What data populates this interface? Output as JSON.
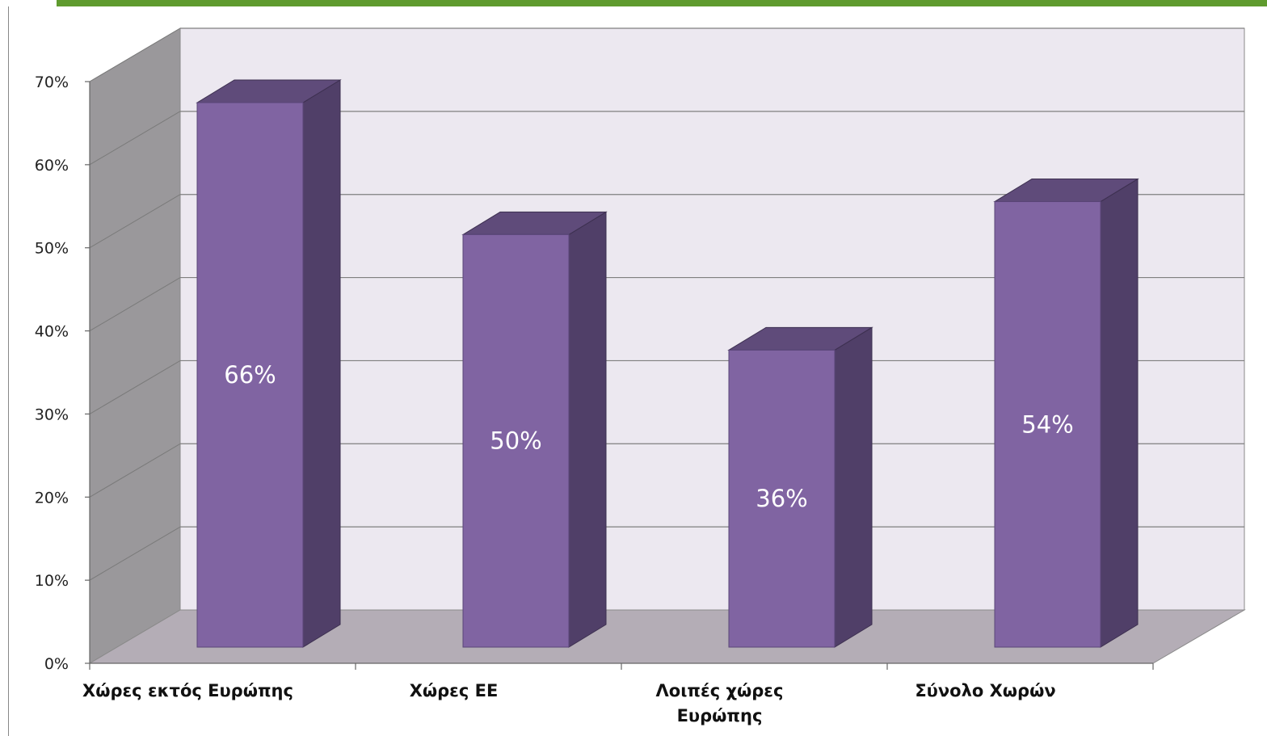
{
  "chart_data": {
    "type": "bar",
    "categories": [
      [
        "Χώρες εκτός Ευρώπης"
      ],
      [
        "Χώρες ΕΕ"
      ],
      [
        "Λοιπές χώρες",
        "Ευρώπης"
      ],
      [
        "Σύνολο Χωρών"
      ]
    ],
    "values": [
      0.66,
      0.5,
      0.36,
      0.54
    ],
    "data_labels": [
      "66%",
      "50%",
      "36%",
      "54%"
    ],
    "y_ticks": [
      "0%",
      "10%",
      "20%",
      "30%",
      "40%",
      "50%",
      "60%",
      "70%"
    ],
    "ylim": [
      0,
      0.7
    ],
    "grid": true,
    "style": "3d-column",
    "colors": {
      "bar_front": "#8064a2",
      "bar_top": "#5f4b7a",
      "bar_side": "#503f68",
      "back_wall": "#ece8f0",
      "side_wall": "#9a989b",
      "floor": "#b4adb6",
      "gridline": "#7f7f7f",
      "accent_bar": "#5f9b2e"
    }
  }
}
